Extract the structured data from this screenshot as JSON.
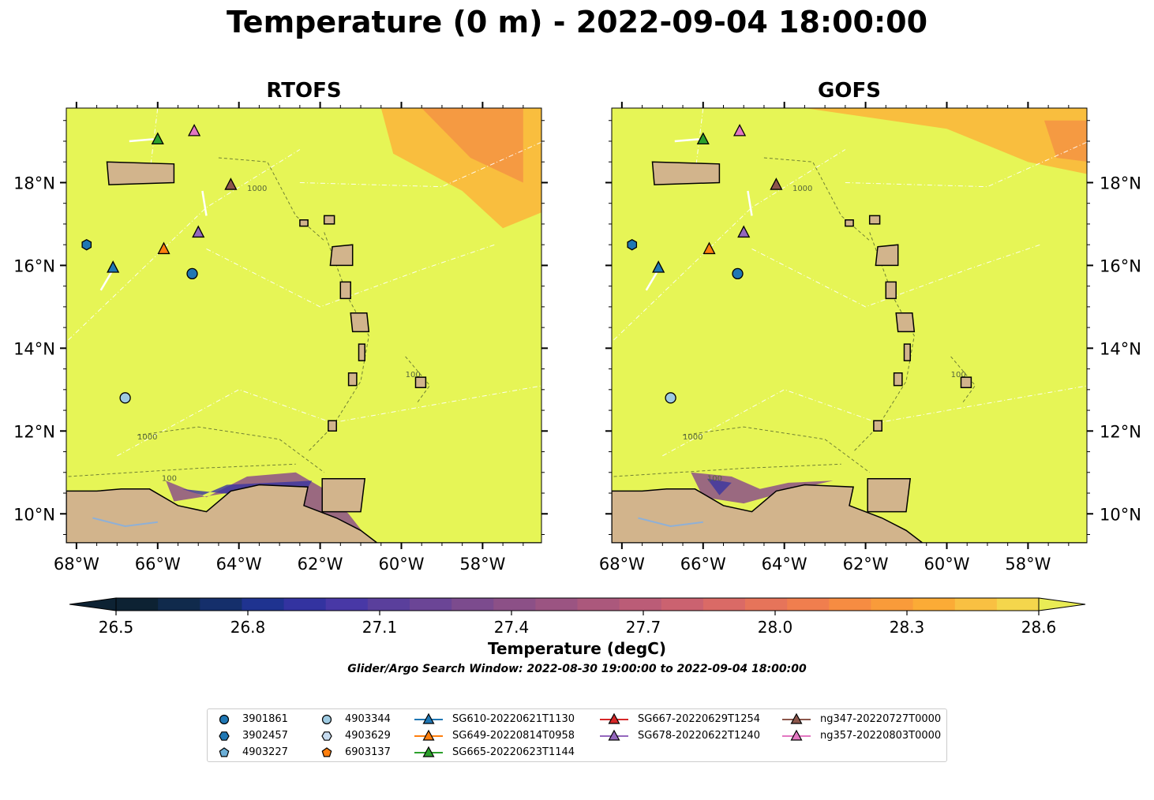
{
  "title": "Temperature (0 m) - 2022-09-04 18:00:00",
  "panels": [
    {
      "title": "RTOFS"
    },
    {
      "title": "GOFS"
    }
  ],
  "map": {
    "lon_range": [
      -68.2,
      -56.5
    ],
    "lat_range": [
      9.3,
      19.8
    ],
    "lon_ticks": [
      "68°W",
      "66°W",
      "64°W",
      "62°W",
      "60°W",
      "58°W"
    ],
    "lat_ticks": [
      "18°N",
      "16°N",
      "14°N",
      "12°N",
      "10°N"
    ],
    "ocean_color": "#e6f556",
    "land_color": "#d2b48c",
    "contour_labels": [
      "1000",
      "100"
    ]
  },
  "colorbar": {
    "ticks": [
      "26.5",
      "26.8",
      "27.1",
      "27.4",
      "27.7",
      "28.0",
      "28.3",
      "28.6"
    ],
    "vmin": 26.5,
    "vmax": 28.6,
    "extend": "both",
    "label": "Temperature (degC)",
    "colors": [
      "#0d2233",
      "#102a4c",
      "#152f6b",
      "#1f3390",
      "#3333a0",
      "#4838a6",
      "#5a3f9c",
      "#6b4596",
      "#7c4b8e",
      "#8c5087",
      "#9b5482",
      "#ab587c",
      "#bb5c77",
      "#cb6270",
      "#da6a66",
      "#e6745a",
      "#f07e4e",
      "#f68c42",
      "#f99b3a",
      "#fbab36",
      "#f9c042",
      "#f4d64c",
      "#e9ec55"
    ]
  },
  "subtitle": "Glider/Argo Search Window: 2022-08-30 19:00:00 to 2022-09-04 18:00:00",
  "legend": {
    "entries": [
      {
        "label": "3901861",
        "marker": "circle",
        "color": "#1f77b4"
      },
      {
        "label": "3902457",
        "marker": "hexagon",
        "color": "#1f77b4"
      },
      {
        "label": "4903227",
        "marker": "pentagon",
        "color": "#6baed6"
      },
      {
        "label": "4903344",
        "marker": "circle",
        "color": "#9ecae1"
      },
      {
        "label": "4903629",
        "marker": "hexagon",
        "color": "#c6dbef"
      },
      {
        "label": "6903137",
        "marker": "pentagon",
        "color": "#ff7f0e"
      },
      {
        "label": "SG610-20220621T1130",
        "marker": "triangle-line",
        "color": "#1f77b4"
      },
      {
        "label": "SG649-20220814T0958",
        "marker": "triangle-line",
        "color": "#ff7f0e"
      },
      {
        "label": "SG665-20220623T1144",
        "marker": "triangle-line",
        "color": "#2ca02c"
      },
      {
        "label": "SG667-20220629T1254",
        "marker": "triangle-line",
        "color": "#d62728"
      },
      {
        "label": "SG678-20220622T1240",
        "marker": "triangle-line",
        "color": "#9467bd"
      },
      {
        "label": "ng347-20220727T0000",
        "marker": "triangle-line",
        "color": "#8c564b"
      },
      {
        "label": "ng357-20220803T0000",
        "marker": "triangle-line",
        "color": "#e377c2"
      }
    ]
  },
  "observations": [
    {
      "id": "SG665-20220623T1144",
      "lon": -66.0,
      "lat": 19.05,
      "marker": "triangle",
      "color": "#2ca02c"
    },
    {
      "id": "ng357-20220803T0000",
      "lon": -65.1,
      "lat": 19.25,
      "marker": "triangle",
      "color": "#e377c2"
    },
    {
      "id": "ng347-20220727T0000",
      "lon": -64.2,
      "lat": 17.95,
      "marker": "triangle",
      "color": "#8c564b"
    },
    {
      "id": "SG678-20220622T1240",
      "lon": -65.0,
      "lat": 16.8,
      "marker": "triangle",
      "color": "#9467bd"
    },
    {
      "id": "SG649-20220814T0958",
      "lon": -65.85,
      "lat": 16.4,
      "marker": "triangle",
      "color": "#ff7f0e"
    },
    {
      "id": "SG610-20220621T1130",
      "lon": -67.1,
      "lat": 15.95,
      "marker": "triangle",
      "color": "#1f77b4"
    },
    {
      "id": "3902457",
      "lon": -67.75,
      "lat": 16.5,
      "marker": "hexagon",
      "color": "#1f77b4"
    },
    {
      "id": "3901861",
      "lon": -65.15,
      "lat": 15.8,
      "marker": "circle",
      "color": "#1f77b4"
    },
    {
      "id": "4903344",
      "lon": -66.8,
      "lat": 12.8,
      "marker": "circle",
      "color": "#9ecae1"
    }
  ]
}
